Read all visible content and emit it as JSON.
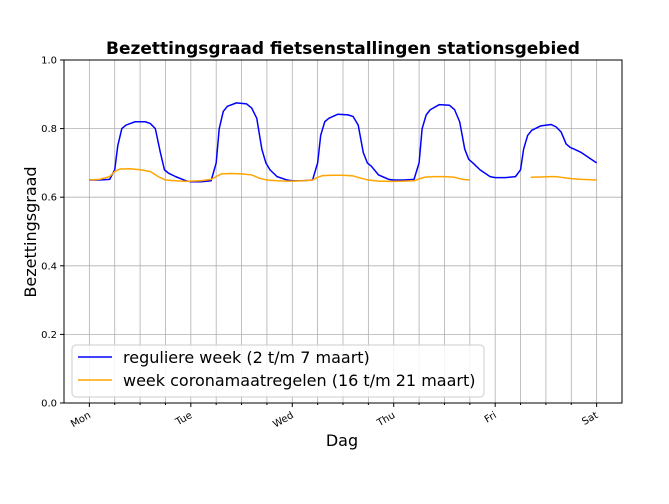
{
  "chart_data": {
    "type": "line",
    "title": "Bezettingsgraad fietsenstallingen stationsgebied",
    "xlabel": "Dag",
    "ylabel": "Bezettingsgraad",
    "ylim": [
      0,
      1.0
    ],
    "xlim": [
      -0.25,
      5.25
    ],
    "yticks": [
      "0.0",
      "0.2",
      "0.4",
      "0.6",
      "0.8",
      "1.0"
    ],
    "xticks": [
      "Mon",
      "Tue",
      "Wed",
      "Thu",
      "Fri",
      "Sat"
    ],
    "grid": true,
    "legend_position": "lower-left",
    "series": [
      {
        "name": "reguliere week (2 t/m 7 maart)",
        "color": "#0000ff",
        "x": [
          0,
          0.1,
          0.2,
          0.25,
          0.28,
          0.32,
          0.36,
          0.45,
          0.55,
          0.6,
          0.65,
          0.7,
          0.74,
          0.78,
          0.85,
          0.95,
          1.0,
          1.1,
          1.2,
          1.25,
          1.28,
          1.32,
          1.36,
          1.45,
          1.55,
          1.6,
          1.65,
          1.7,
          1.74,
          1.78,
          1.85,
          1.95,
          2.0,
          2.1,
          2.2,
          2.25,
          2.28,
          2.32,
          2.36,
          2.45,
          2.55,
          2.6,
          2.65,
          2.7,
          2.74,
          2.78,
          2.85,
          2.95,
          3.0,
          3.1,
          3.2,
          3.25,
          3.28,
          3.32,
          3.36,
          3.45,
          3.55,
          3.6,
          3.65,
          3.7,
          3.74,
          3.78,
          3.85,
          3.95,
          4.0,
          4.1,
          4.2,
          4.25,
          4.28,
          4.32,
          4.36,
          4.45,
          4.55,
          4.6,
          4.65,
          4.7,
          4.74,
          4.78,
          4.85,
          4.95,
          5.0
        ],
        "values": [
          0.65,
          0.65,
          0.652,
          0.68,
          0.75,
          0.8,
          0.81,
          0.82,
          0.82,
          0.815,
          0.8,
          0.73,
          0.68,
          0.67,
          0.66,
          0.648,
          0.645,
          0.645,
          0.648,
          0.7,
          0.8,
          0.85,
          0.865,
          0.875,
          0.872,
          0.86,
          0.83,
          0.74,
          0.7,
          0.68,
          0.66,
          0.65,
          0.648,
          0.648,
          0.65,
          0.7,
          0.78,
          0.82,
          0.83,
          0.842,
          0.84,
          0.835,
          0.81,
          0.73,
          0.7,
          0.69,
          0.665,
          0.652,
          0.65,
          0.65,
          0.652,
          0.7,
          0.8,
          0.84,
          0.855,
          0.87,
          0.868,
          0.855,
          0.82,
          0.74,
          0.71,
          0.7,
          0.68,
          0.66,
          0.657,
          0.657,
          0.66,
          0.68,
          0.74,
          0.78,
          0.795,
          0.808,
          0.812,
          0.805,
          0.79,
          0.755,
          0.745,
          0.74,
          0.73,
          0.71,
          0.7
        ]
      },
      {
        "name": "week coronamaatregelen (16 t/m 21 maart)",
        "color": "#ffa500",
        "segments": [
          {
            "x": [
              0,
              0.1,
              0.2,
              0.25,
              0.3,
              0.4,
              0.5,
              0.6,
              0.68,
              0.75,
              0.85,
              0.95,
              1.0,
              1.1,
              1.2,
              1.25,
              1.3,
              1.4,
              1.5,
              1.6,
              1.68,
              1.75,
              1.85,
              1.95,
              2.0,
              2.1,
              2.2,
              2.25,
              2.3,
              2.4,
              2.5,
              2.6,
              2.68,
              2.75,
              2.85,
              2.95,
              3.0,
              3.1,
              3.2,
              3.25,
              3.3,
              3.4,
              3.5,
              3.6,
              3.68,
              3.75
            ],
            "values": [
              0.65,
              0.652,
              0.66,
              0.675,
              0.682,
              0.683,
              0.68,
              0.675,
              0.66,
              0.65,
              0.648,
              0.646,
              0.647,
              0.648,
              0.652,
              0.66,
              0.668,
              0.669,
              0.668,
              0.665,
              0.655,
              0.65,
              0.648,
              0.647,
              0.647,
              0.648,
              0.65,
              0.658,
              0.663,
              0.664,
              0.664,
              0.662,
              0.655,
              0.65,
              0.647,
              0.646,
              0.646,
              0.647,
              0.648,
              0.653,
              0.658,
              0.66,
              0.66,
              0.658,
              0.652,
              0.65
            ]
          },
          {
            "x": [
              4.35,
              4.45,
              4.55,
              4.6,
              4.65,
              4.75,
              4.85,
              4.95,
              5.0
            ],
            "values": [
              0.658,
              0.659,
              0.66,
              0.66,
              0.658,
              0.654,
              0.652,
              0.651,
              0.65
            ]
          }
        ]
      }
    ]
  }
}
